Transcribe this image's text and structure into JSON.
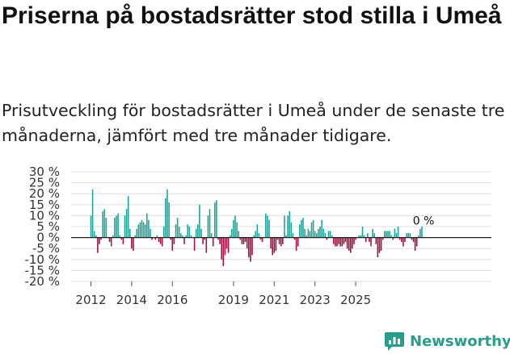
{
  "title": "Priserna på bostadsrätter stod stilla i Umeå",
  "subtitle": "Prisutveckling för bostadsrätter i Umeå under de senaste tre månaderna, jämfört med tre månader tidigare.",
  "brand": "Newsworthy",
  "colors": {
    "positive": "#22a59a",
    "negative": "#a01145",
    "grid": "#dddddd",
    "axis": "#222222",
    "brand": "#2a9d8a"
  },
  "chart_data": {
    "type": "bar",
    "title": "",
    "xlabel": "",
    "ylabel": "",
    "ylim": [
      -20,
      30
    ],
    "y_ticks": [
      30,
      25,
      20,
      15,
      10,
      5,
      0,
      -5,
      -10,
      -15,
      -20
    ],
    "y_tick_labels": [
      "30 %",
      "25 %",
      "20 %",
      "15 %",
      "10 %",
      "5 %",
      "0 %",
      "-5 %",
      "-10 %",
      "-15 %",
      "-20 %"
    ],
    "x_start": "2012-01",
    "x_ticks": [
      2012,
      2014,
      2016,
      2019,
      2021,
      2023,
      2025
    ],
    "x_tick_labels": [
      "2012",
      "2014",
      "2016",
      "2019",
      "2021",
      "2023",
      "2025"
    ],
    "last_value_label": "0 %",
    "values": [
      10,
      22,
      3,
      1,
      -7,
      -3,
      -1,
      12,
      13,
      9,
      0,
      -2,
      -4,
      1,
      9,
      10,
      11,
      1,
      -1,
      -3,
      10,
      13,
      19,
      4,
      -5,
      -6,
      1,
      4,
      6,
      7,
      8,
      7,
      6,
      11,
      8,
      4,
      -1,
      0,
      -1,
      1,
      -2,
      -3,
      -4,
      5,
      18,
      22,
      16,
      -1,
      -6,
      -3,
      6,
      9,
      5,
      2,
      1,
      -3,
      1,
      6,
      5,
      1,
      0,
      -6,
      4,
      6,
      15,
      4,
      -3,
      -1,
      -7,
      10,
      13,
      2,
      -4,
      16,
      17,
      -1,
      -3,
      -10,
      -13,
      -8,
      -5,
      -7,
      1,
      4,
      8,
      10,
      7,
      3,
      -1,
      -3,
      -3,
      -2,
      -5,
      -9,
      -11,
      -8,
      1,
      3,
      6,
      2,
      -1,
      -2,
      0,
      11,
      10,
      8,
      -5,
      -8,
      -7,
      -6,
      -1,
      -3,
      -4,
      -3,
      10,
      1,
      10,
      12,
      7,
      2,
      -1,
      -6,
      -4,
      6,
      8,
      9,
      4,
      1,
      4,
      3,
      7,
      8,
      3,
      2,
      4,
      5,
      8,
      4,
      2,
      -1,
      3,
      3,
      1,
      -3,
      -4,
      -4,
      -3,
      -4,
      -4,
      -3,
      -2,
      -5,
      -6,
      -7,
      -5,
      -3,
      -1,
      0,
      1,
      1,
      5,
      1,
      -2,
      2,
      -2,
      -4,
      4,
      2,
      -3,
      -9,
      -7,
      -6,
      -1,
      3,
      3,
      3,
      3,
      1,
      -1,
      4,
      2,
      5,
      -1,
      -2,
      -4,
      -2,
      2,
      2,
      2,
      -1,
      -2,
      -6,
      -4,
      1,
      4,
      5,
      0
    ]
  }
}
